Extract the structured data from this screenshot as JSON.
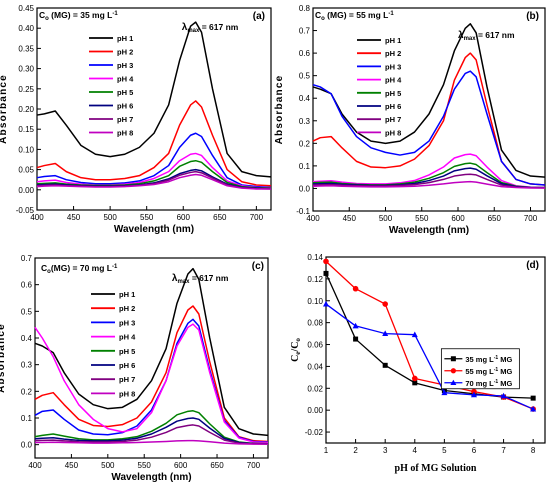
{
  "chart_data": [
    {
      "type": "line",
      "panel_label": "(a)",
      "annotation": "C",
      "annotation_sub": "o",
      "annotation_rest": " (MG) = 35 mg L",
      "annotation_sup": "-1",
      "lambda_label": "λ",
      "lambda_sub": "max",
      "lambda_rest": " = 617 nm",
      "xlabel": "Wavelength (nm)",
      "ylabel": "Absorbance",
      "xlim": [
        400,
        720
      ],
      "ylim": [
        -0.05,
        0.45
      ],
      "xticks": [
        400,
        450,
        500,
        550,
        600,
        650,
        700
      ],
      "yticks": [
        -0.05,
        0.0,
        0.05,
        0.1,
        0.15,
        0.2,
        0.25,
        0.3,
        0.35,
        0.4,
        0.45
      ],
      "ytick_labels": [
        "-0.05",
        "0.00",
        "0.05",
        "0.10",
        "0.15",
        "0.20",
        "0.25",
        "0.30",
        "0.35",
        "0.40",
        "0.45"
      ],
      "legend_position": "top-left",
      "x": [
        400,
        410,
        425,
        440,
        460,
        480,
        500,
        520,
        540,
        560,
        580,
        595,
        610,
        617,
        625,
        640,
        660,
        680,
        700,
        720
      ],
      "series": [
        {
          "name": "pH 1",
          "color": "#000000",
          "values": [
            0.185,
            0.188,
            0.195,
            0.16,
            0.11,
            0.088,
            0.082,
            0.088,
            0.105,
            0.14,
            0.21,
            0.32,
            0.405,
            0.415,
            0.39,
            0.25,
            0.09,
            0.045,
            0.035,
            0.032
          ]
        },
        {
          "name": "pH 2",
          "color": "#ff0000",
          "values": [
            0.055,
            0.06,
            0.065,
            0.045,
            0.03,
            0.025,
            0.025,
            0.028,
            0.035,
            0.055,
            0.09,
            0.16,
            0.21,
            0.22,
            0.205,
            0.135,
            0.05,
            0.02,
            0.012,
            0.01
          ]
        },
        {
          "name": "pH 3",
          "color": "#0000ff",
          "values": [
            0.03,
            0.033,
            0.035,
            0.025,
            0.018,
            0.015,
            0.015,
            0.017,
            0.022,
            0.035,
            0.06,
            0.105,
            0.135,
            0.14,
            0.132,
            0.085,
            0.03,
            0.012,
            0.008,
            0.006
          ]
        },
        {
          "name": "pH 4",
          "color": "#ff00ff",
          "values": [
            0.02,
            0.022,
            0.024,
            0.018,
            0.014,
            0.012,
            0.012,
            0.014,
            0.018,
            0.028,
            0.045,
            0.072,
            0.088,
            0.09,
            0.085,
            0.055,
            0.022,
            0.01,
            0.006,
            0.005
          ]
        },
        {
          "name": "pH 5",
          "color": "#008000",
          "values": [
            0.015,
            0.016,
            0.017,
            0.014,
            0.012,
            0.011,
            0.011,
            0.012,
            0.015,
            0.022,
            0.035,
            0.058,
            0.07,
            0.072,
            0.068,
            0.045,
            0.018,
            0.008,
            0.005,
            0.004
          ]
        },
        {
          "name": "pH 6",
          "color": "#000080",
          "values": [
            0.012,
            0.013,
            0.014,
            0.012,
            0.01,
            0.009,
            0.009,
            0.01,
            0.012,
            0.017,
            0.027,
            0.04,
            0.048,
            0.05,
            0.047,
            0.032,
            0.014,
            0.006,
            0.004,
            0.003
          ]
        },
        {
          "name": "pH 7",
          "color": "#800080",
          "values": [
            0.01,
            0.011,
            0.012,
            0.01,
            0.009,
            0.008,
            0.008,
            0.009,
            0.011,
            0.015,
            0.024,
            0.036,
            0.043,
            0.045,
            0.042,
            0.029,
            0.012,
            0.005,
            0.003,
            0.002
          ]
        },
        {
          "name": "pH 8",
          "color": "#c000c0",
          "values": [
            0.008,
            0.009,
            0.01,
            0.009,
            0.008,
            0.007,
            0.007,
            0.008,
            0.01,
            0.013,
            0.02,
            0.03,
            0.036,
            0.038,
            0.036,
            0.025,
            0.01,
            0.004,
            0.002,
            0.002
          ]
        }
      ]
    },
    {
      "type": "line",
      "panel_label": "(b)",
      "annotation": "C",
      "annotation_sub": "o",
      "annotation_rest": " (MG) = 55 mg L",
      "annotation_sup": "-1",
      "lambda_label": "λ",
      "lambda_sub": "max",
      "lambda_rest": " = 617 nm",
      "xlabel": "Wavelength (nm)",
      "ylabel": "Absorbance",
      "xlim": [
        400,
        720
      ],
      "ylim": [
        -0.1,
        0.8
      ],
      "xticks": [
        400,
        450,
        500,
        550,
        600,
        650,
        700
      ],
      "yticks": [
        -0.1,
        0.0,
        0.1,
        0.2,
        0.3,
        0.4,
        0.5,
        0.6,
        0.7,
        0.8
      ],
      "ytick_labels": [
        "-0.1",
        "0.0",
        "0.1",
        "0.2",
        "0.3",
        "0.4",
        "0.5",
        "0.6",
        "0.7",
        "0.8"
      ],
      "legend_position": "top-left",
      "x": [
        400,
        410,
        425,
        440,
        460,
        480,
        500,
        520,
        540,
        560,
        580,
        595,
        610,
        617,
        625,
        640,
        660,
        680,
        700,
        720
      ],
      "series": [
        {
          "name": "pH 1",
          "color": "#000000",
          "values": [
            0.45,
            0.44,
            0.42,
            0.33,
            0.25,
            0.21,
            0.2,
            0.21,
            0.25,
            0.33,
            0.46,
            0.61,
            0.71,
            0.73,
            0.69,
            0.45,
            0.17,
            0.08,
            0.055,
            0.05
          ]
        },
        {
          "name": "pH 2",
          "color": "#ff0000",
          "values": [
            0.21,
            0.225,
            0.23,
            0.18,
            0.12,
            0.095,
            0.092,
            0.1,
            0.13,
            0.19,
            0.3,
            0.48,
            0.58,
            0.6,
            0.57,
            0.37,
            0.12,
            0.04,
            0.02,
            0.015
          ]
        },
        {
          "name": "pH 3",
          "color": "#0000ff",
          "values": [
            0.46,
            0.45,
            0.42,
            0.32,
            0.23,
            0.18,
            0.16,
            0.148,
            0.16,
            0.21,
            0.32,
            0.44,
            0.51,
            0.52,
            0.495,
            0.33,
            0.12,
            0.04,
            0.02,
            0.015
          ]
        },
        {
          "name": "pH 4",
          "color": "#ff00ff",
          "values": [
            0.03,
            0.032,
            0.034,
            0.028,
            0.022,
            0.02,
            0.02,
            0.025,
            0.035,
            0.06,
            0.095,
            0.135,
            0.15,
            0.152,
            0.145,
            0.095,
            0.035,
            0.012,
            0.006,
            0.005
          ]
        },
        {
          "name": "pH 5",
          "color": "#008000",
          "values": [
            0.025,
            0.027,
            0.028,
            0.022,
            0.018,
            0.016,
            0.016,
            0.02,
            0.028,
            0.045,
            0.07,
            0.098,
            0.11,
            0.112,
            0.106,
            0.07,
            0.026,
            0.01,
            0.005,
            0.004
          ]
        },
        {
          "name": "pH 6",
          "color": "#000080",
          "values": [
            0.02,
            0.021,
            0.022,
            0.018,
            0.015,
            0.013,
            0.013,
            0.016,
            0.022,
            0.035,
            0.055,
            0.078,
            0.088,
            0.09,
            0.085,
            0.056,
            0.021,
            0.008,
            0.004,
            0.003
          ]
        },
        {
          "name": "pH 7",
          "color": "#800080",
          "values": [
            0.015,
            0.016,
            0.017,
            0.014,
            0.012,
            0.011,
            0.011,
            0.013,
            0.017,
            0.026,
            0.04,
            0.055,
            0.062,
            0.063,
            0.06,
            0.04,
            0.015,
            0.006,
            0.003,
            0.002
          ]
        },
        {
          "name": "pH 8",
          "color": "#c000c0",
          "values": [
            0.01,
            0.011,
            0.012,
            0.01,
            0.008,
            0.007,
            0.007,
            0.008,
            0.01,
            0.014,
            0.02,
            0.026,
            0.029,
            0.03,
            0.028,
            0.019,
            0.008,
            0.004,
            0.002,
            0.002
          ]
        }
      ]
    },
    {
      "type": "line",
      "panel_label": "(c)",
      "annotation": "C",
      "annotation_sub": "o",
      "annotation_rest": "(MG) = 70 mg L",
      "annotation_sup": "-1",
      "lambda_label": "λ",
      "lambda_sub": "max",
      "lambda_rest": " = 617 nm",
      "xlabel": "Wavelength (nm)",
      "ylabel": "Absorbance",
      "xlim": [
        400,
        720
      ],
      "ylim": [
        -0.05,
        0.7
      ],
      "xticks": [
        400,
        450,
        500,
        550,
        600,
        650,
        700
      ],
      "yticks": [
        0.0,
        0.1,
        0.2,
        0.3,
        0.4,
        0.5,
        0.6,
        0.7
      ],
      "ytick_labels": [
        "0.0",
        "0.1",
        "0.2",
        "0.3",
        "0.4",
        "0.5",
        "0.6",
        "0.7"
      ],
      "legend_position": "top-left",
      "x": [
        400,
        410,
        425,
        440,
        460,
        480,
        500,
        520,
        540,
        560,
        580,
        595,
        610,
        617,
        625,
        640,
        660,
        680,
        700,
        720
      ],
      "series": [
        {
          "name": "pH 1",
          "color": "#000000",
          "values": [
            0.38,
            0.37,
            0.345,
            0.27,
            0.19,
            0.15,
            0.135,
            0.14,
            0.17,
            0.24,
            0.36,
            0.53,
            0.64,
            0.66,
            0.62,
            0.4,
            0.14,
            0.06,
            0.04,
            0.035
          ]
        },
        {
          "name": "pH 2",
          "color": "#ff0000",
          "values": [
            0.17,
            0.185,
            0.195,
            0.15,
            0.095,
            0.072,
            0.068,
            0.075,
            0.1,
            0.16,
            0.27,
            0.42,
            0.505,
            0.52,
            0.49,
            0.31,
            0.1,
            0.03,
            0.015,
            0.012
          ]
        },
        {
          "name": "pH 3",
          "color": "#0000ff",
          "values": [
            0.11,
            0.125,
            0.13,
            0.095,
            0.055,
            0.04,
            0.037,
            0.045,
            0.07,
            0.13,
            0.24,
            0.38,
            0.455,
            0.47,
            0.445,
            0.28,
            0.09,
            0.028,
            0.012,
            0.01
          ]
        },
        {
          "name": "pH 4",
          "color": "#ff00ff",
          "values": [
            0.44,
            0.4,
            0.33,
            0.24,
            0.15,
            0.095,
            0.06,
            0.048,
            0.06,
            0.12,
            0.24,
            0.37,
            0.44,
            0.452,
            0.43,
            0.27,
            0.085,
            0.025,
            0.01,
            0.008
          ]
        },
        {
          "name": "pH 5",
          "color": "#008000",
          "values": [
            0.03,
            0.035,
            0.04,
            0.032,
            0.022,
            0.018,
            0.018,
            0.022,
            0.03,
            0.05,
            0.08,
            0.112,
            0.125,
            0.127,
            0.12,
            0.078,
            0.028,
            0.01,
            0.005,
            0.004
          ]
        },
        {
          "name": "pH 6",
          "color": "#000080",
          "values": [
            0.022,
            0.024,
            0.026,
            0.021,
            0.016,
            0.014,
            0.014,
            0.017,
            0.024,
            0.04,
            0.065,
            0.088,
            0.098,
            0.1,
            0.095,
            0.062,
            0.023,
            0.008,
            0.004,
            0.003
          ]
        },
        {
          "name": "pH 7",
          "color": "#800080",
          "values": [
            0.015,
            0.016,
            0.017,
            0.014,
            0.011,
            0.01,
            0.01,
            0.012,
            0.017,
            0.028,
            0.046,
            0.064,
            0.072,
            0.074,
            0.07,
            0.046,
            0.017,
            0.006,
            0.003,
            0.002
          ]
        },
        {
          "name": "pH 8",
          "color": "#c000c0",
          "values": [
            0.008,
            0.008,
            0.009,
            0.008,
            0.007,
            0.006,
            0.006,
            0.007,
            0.008,
            0.01,
            0.012,
            0.014,
            0.015,
            0.015,
            0.014,
            0.011,
            0.006,
            0.003,
            0.002,
            0.002
          ]
        }
      ]
    },
    {
      "type": "line",
      "panel_label": "(d)",
      "xlabel": "pH of MG Solution",
      "ylabel": "C",
      "ylabel_sub_e": "e",
      "ylabel_mid": "/C",
      "ylabel_sub_o": "o",
      "xlim": [
        1,
        8.4
      ],
      "ylim": [
        -0.03,
        0.14
      ],
      "xticks": [
        1,
        2,
        3,
        4,
        5,
        6,
        7,
        8
      ],
      "yticks": [
        -0.02,
        0.0,
        0.02,
        0.04,
        0.06,
        0.08,
        0.1,
        0.12,
        0.14
      ],
      "ytick_labels": [
        "-0.02",
        "0.00",
        "0.02",
        "0.04",
        "0.06",
        "0.08",
        "0.10",
        "0.12",
        "0.14"
      ],
      "legend_position": "center-right",
      "x": [
        1,
        2,
        3,
        4,
        5,
        6,
        7,
        8
      ],
      "series": [
        {
          "name": "35 mg L",
          "name_sup": "-1",
          "name_rest": " MG",
          "color": "#000000",
          "marker": "square",
          "values": [
            0.125,
            0.065,
            0.041,
            0.025,
            0.018,
            0.015,
            0.012,
            0.011
          ]
        },
        {
          "name": "55 mg L",
          "name_sup": "-1",
          "name_rest": " MG",
          "color": "#ff0000",
          "marker": "circle",
          "values": [
            0.136,
            0.111,
            0.097,
            0.029,
            0.023,
            0.017,
            0.012,
            0.001
          ]
        },
        {
          "name": "70 mg L",
          "name_sup": "-1",
          "name_rest": " MG",
          "color": "#0000ff",
          "marker": "triangle",
          "values": [
            0.097,
            0.077,
            0.07,
            0.069,
            0.016,
            0.014,
            0.013,
            0.001
          ]
        }
      ]
    }
  ]
}
